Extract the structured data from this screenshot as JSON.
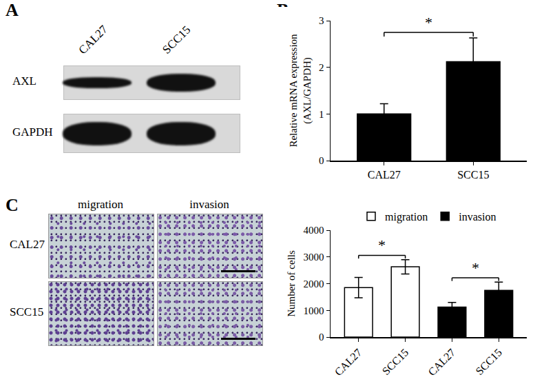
{
  "panel_labels": {
    "blot": "A",
    "mrna": "B",
    "transwell": "C"
  },
  "blot": {
    "lanes": [
      "CAL27",
      "SCC15"
    ],
    "rows": [
      "AXL",
      "GAPDH"
    ]
  },
  "micrographs": {
    "columns": [
      "migration",
      "invasion"
    ],
    "rows": [
      "CAL27",
      "SCC15"
    ]
  },
  "chart_data": [
    {
      "type": "bar",
      "categories": [
        "CAL27",
        "SCC15"
      ],
      "values": [
        1,
        2.12
      ],
      "errors": [
        0.22,
        0.51
      ],
      "color": "#000000",
      "ylabel": [
        "Relative mRNA expression",
        "(AXL/GAPDH)"
      ],
      "ylim": [
        0,
        3
      ],
      "yticks": [
        0,
        1,
        2,
        3
      ],
      "grid": false,
      "significance": [
        {
          "text": "*",
          "between": [
            0,
            1
          ]
        }
      ]
    },
    {
      "type": "bar",
      "categories": [
        "CAL27",
        "SCC15",
        "CAL27",
        "SCC15"
      ],
      "series": [
        {
          "name": "migration",
          "color": "#ffffff",
          "values": [
            1850,
            2630,
            null,
            null
          ],
          "errors": [
            380,
            270,
            null,
            null
          ]
        },
        {
          "name": "invasion",
          "color": "#000000",
          "values": [
            null,
            null,
            1120,
            1750
          ],
          "errors": [
            null,
            null,
            180,
            310
          ]
        }
      ],
      "ylabel": "Number of cells",
      "ylim": [
        0,
        4000
      ],
      "yticks": [
        0,
        1000,
        2000,
        3000,
        4000
      ],
      "grid": false,
      "legend": "top",
      "significance": [
        {
          "text": "*",
          "between": [
            0,
            1
          ]
        },
        {
          "text": "*",
          "between": [
            2,
            3
          ]
        }
      ]
    }
  ]
}
